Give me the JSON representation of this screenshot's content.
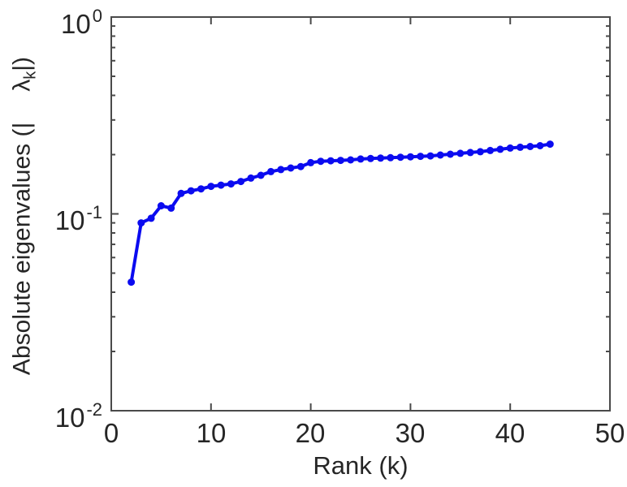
{
  "figure": {
    "background": "#ffffff",
    "axis_color": "#4a4a4a",
    "text_color": "#262626"
  },
  "chart_data": {
    "type": "line",
    "title": "",
    "xlabel": "Rank (k)",
    "ylabel": "Absolute eigenvalues (| λk|)",
    "ylabel_parts": {
      "prefix": "Absolute eigenvalues (|",
      "lambda": "λ",
      "lambda_sub": "k",
      "suffix": "|)"
    },
    "series": [
      {
        "name": "absolute-eigenvalues",
        "color": "#0b0bf0",
        "marker": "circle",
        "x": [
          2,
          3,
          4,
          5,
          6,
          7,
          8,
          9,
          10,
          11,
          12,
          13,
          14,
          15,
          16,
          17,
          18,
          19,
          20,
          21,
          22,
          23,
          24,
          25,
          26,
          27,
          28,
          29,
          30,
          31,
          32,
          33,
          34,
          35,
          36,
          37,
          38,
          39,
          40,
          41,
          42,
          43,
          44
        ],
        "y": [
          0.045,
          0.09,
          0.095,
          0.11,
          0.107,
          0.127,
          0.131,
          0.134,
          0.138,
          0.14,
          0.142,
          0.146,
          0.152,
          0.157,
          0.164,
          0.168,
          0.171,
          0.174,
          0.182,
          0.185,
          0.186,
          0.187,
          0.188,
          0.19,
          0.191,
          0.192,
          0.193,
          0.194,
          0.195,
          0.196,
          0.197,
          0.199,
          0.201,
          0.203,
          0.205,
          0.207,
          0.21,
          0.213,
          0.216,
          0.218,
          0.22,
          0.222,
          0.226
        ]
      }
    ],
    "xlim": [
      0,
      50
    ],
    "yscale": "log",
    "ylim_log10": [
      -2,
      0
    ],
    "x_ticks": [
      0,
      10,
      20,
      30,
      40,
      50
    ],
    "y_ticks": [
      {
        "base": "10",
        "exp": "0",
        "log10": 0
      },
      {
        "base": "10",
        "exp": "-1",
        "log10": -1
      },
      {
        "base": "10",
        "exp": "-2",
        "log10": -2
      }
    ],
    "grid": false,
    "legend": null
  }
}
